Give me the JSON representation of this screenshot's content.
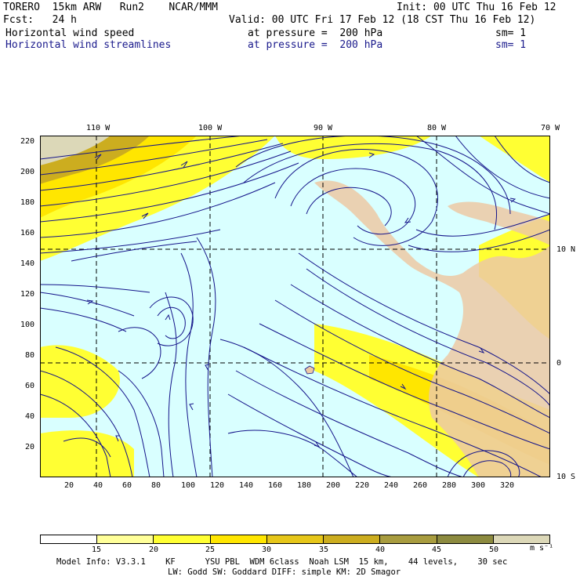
{
  "header": {
    "model": "TORERO  15km ARW   Run2    NCAR/MMM",
    "init": "Init: 00 UTC Thu 16 Feb 12",
    "fcst": "Fcst:   24 h",
    "valid": "Valid: 00 UTC Fri 17 Feb 12 (18 CST Thu 16 Feb 12)",
    "field1": {
      "name": "Horizontal wind speed",
      "level": "at pressure =  200 hPa",
      "smooth": "sm= 1"
    },
    "field2": {
      "name": "Horizontal wind streamlines",
      "level": "at pressure =  200 hPa",
      "smooth": "sm= 1"
    }
  },
  "map": {
    "top_labels": [
      "110 W",
      "100 W",
      "90 W",
      "80 W",
      "70 W"
    ],
    "right_labels": [
      "10 N",
      "0",
      "10 S"
    ],
    "y_ticks": [
      "220",
      "200",
      "180",
      "160",
      "140",
      "120",
      "100",
      "80",
      "60",
      "40",
      "20"
    ],
    "x_ticks": [
      "20",
      "40",
      "60",
      "80",
      "100",
      "120",
      "140",
      "160",
      "180",
      "200",
      "220",
      "240",
      "260",
      "280",
      "300",
      "320"
    ],
    "colors": {
      "ocean": "#d9ffff",
      "land": "#ecc9a5",
      "stream": "#14148a",
      "grid": "#000000"
    }
  },
  "colorbar": {
    "labels": [
      "15",
      "20",
      "25",
      "30",
      "35",
      "40",
      "45",
      "50"
    ],
    "units": "m s⁻¹",
    "colors": [
      "#ffffff",
      "#ffff99",
      "#ffff33",
      "#ffe600",
      "#e6c619",
      "#ccad1f",
      "#a89c3f",
      "#8c8a3f",
      "#dcd8b8",
      "#ffffff"
    ]
  },
  "footer": {
    "line1": "Model Info: V3.3.1    KF      YSU PBL  WDM 6class  Noah LSM  15 km,    44 levels,    30 sec",
    "line2": "LW: Godd SW: Goddard DIFF: simple KM: 2D Smagor"
  }
}
